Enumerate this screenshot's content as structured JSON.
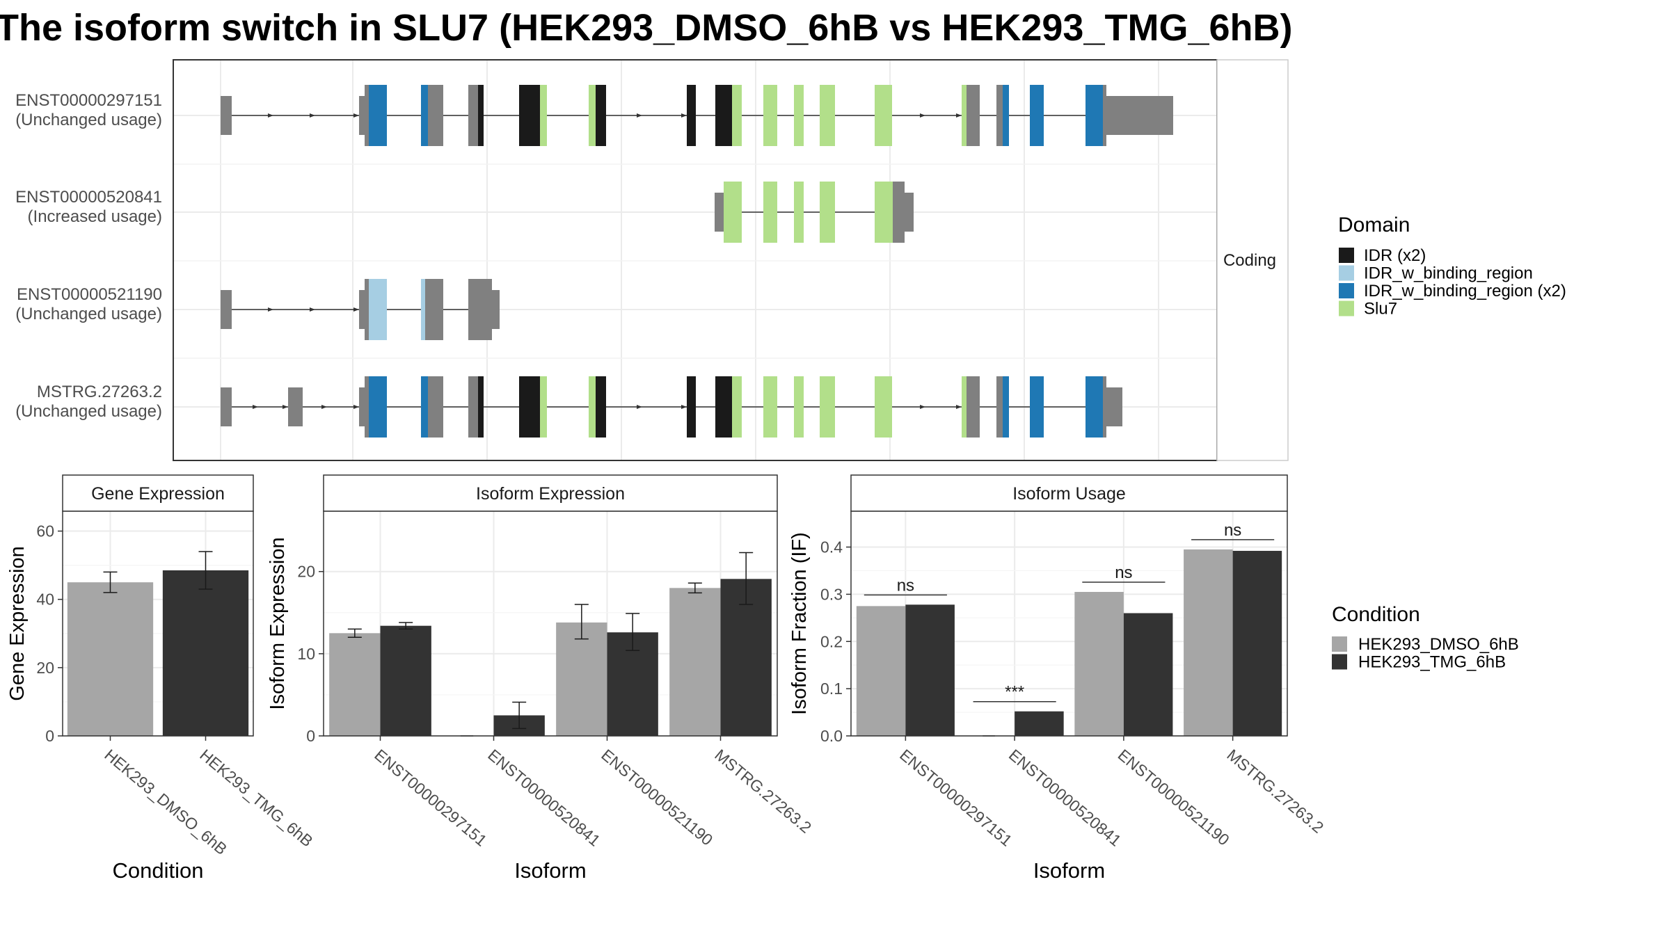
{
  "title": "The isoform switch in SLU7 (HEK293_DMSO_6hB vs HEK293_TMG_6hB)",
  "structure": {
    "facet_label": "Coding",
    "transcripts": [
      {
        "id": "ENST00000297151",
        "usage": "(Unchanged usage)"
      },
      {
        "id": "ENST00000520841",
        "usage": "(Increased usage)"
      },
      {
        "id": "ENST00000521190",
        "usage": "(Unchanged usage)"
      },
      {
        "id": "MSTRG.27263.2",
        "usage": "(Unchanged usage)"
      }
    ],
    "domain_legend": {
      "title": "Domain",
      "items": [
        {
          "label": "IDR (x2)",
          "color": "#1a1a1a"
        },
        {
          "label": "IDR_w_binding_region",
          "color": "#a6cee3"
        },
        {
          "label": "IDR_w_binding_region (x2)",
          "color": "#1f78b4"
        },
        {
          "label": "Slu7",
          "color": "#b2df8a"
        }
      ]
    },
    "utr_color": "#808080"
  },
  "condition_legend": {
    "title": "Condition",
    "items": [
      {
        "label": "HEK293_DMSO_6hB",
        "color": "#a6a6a6"
      },
      {
        "label": "HEK293_TMG_6hB",
        "color": "#333333"
      }
    ]
  },
  "chart_data": [
    {
      "type": "bar",
      "title": "Gene Expression",
      "xlabel": "Condition",
      "ylabel": "Gene Expression",
      "ylim": [
        0,
        65
      ],
      "yticks": [
        0,
        20,
        40,
        60
      ],
      "categories": [
        "HEK293_DMSO_6hB",
        "HEK293_TMG_6hB"
      ],
      "series": [
        {
          "name": "HEK293_DMSO_6hB",
          "values": [
            45,
            null
          ],
          "error": [
            [
              42,
              48
            ],
            null
          ]
        },
        {
          "name": "HEK293_TMG_6hB",
          "values": [
            null,
            48.5
          ],
          "error": [
            null,
            [
              43,
              54
            ]
          ]
        }
      ]
    },
    {
      "type": "bar",
      "title": "Isoform Expression",
      "xlabel": "Isoform",
      "ylabel": "Isoform Expression",
      "ylim": [
        0,
        27
      ],
      "yticks": [
        0,
        10,
        20
      ],
      "categories": [
        "ENST00000297151",
        "ENST00000520841",
        "ENST00000521190",
        "MSTRG.27263.2"
      ],
      "series": [
        {
          "name": "HEK293_DMSO_6hB",
          "values": [
            12.5,
            0,
            13.8,
            18
          ],
          "error": [
            [
              12,
              13
            ],
            [
              0,
              0
            ],
            [
              11.8,
              16
            ],
            [
              17.4,
              18.6
            ]
          ]
        },
        {
          "name": "HEK293_TMG_6hB",
          "values": [
            13.4,
            2.5,
            12.6,
            19.1
          ],
          "error": [
            [
              13,
              13.8
            ],
            [
              0.9,
              4.1
            ],
            [
              10.4,
              14.9
            ],
            [
              16,
              22.3
            ]
          ]
        }
      ]
    },
    {
      "type": "bar",
      "title": "Isoform Usage",
      "xlabel": "Isoform",
      "ylabel": "Isoform Fraction (IF)",
      "ylim": [
        0,
        0.47
      ],
      "yticks": [
        0.0,
        0.1,
        0.2,
        0.3,
        0.4
      ],
      "categories": [
        "ENST00000297151",
        "ENST00000520841",
        "ENST00000521190",
        "MSTRG.27263.2"
      ],
      "series": [
        {
          "name": "HEK293_DMSO_6hB",
          "values": [
            0.275,
            0.0,
            0.305,
            0.395
          ]
        },
        {
          "name": "HEK293_TMG_6hB",
          "values": [
            0.278,
            0.052,
            0.26,
            0.392
          ]
        }
      ],
      "significance": [
        "ns",
        "***",
        "ns",
        "ns"
      ]
    }
  ]
}
